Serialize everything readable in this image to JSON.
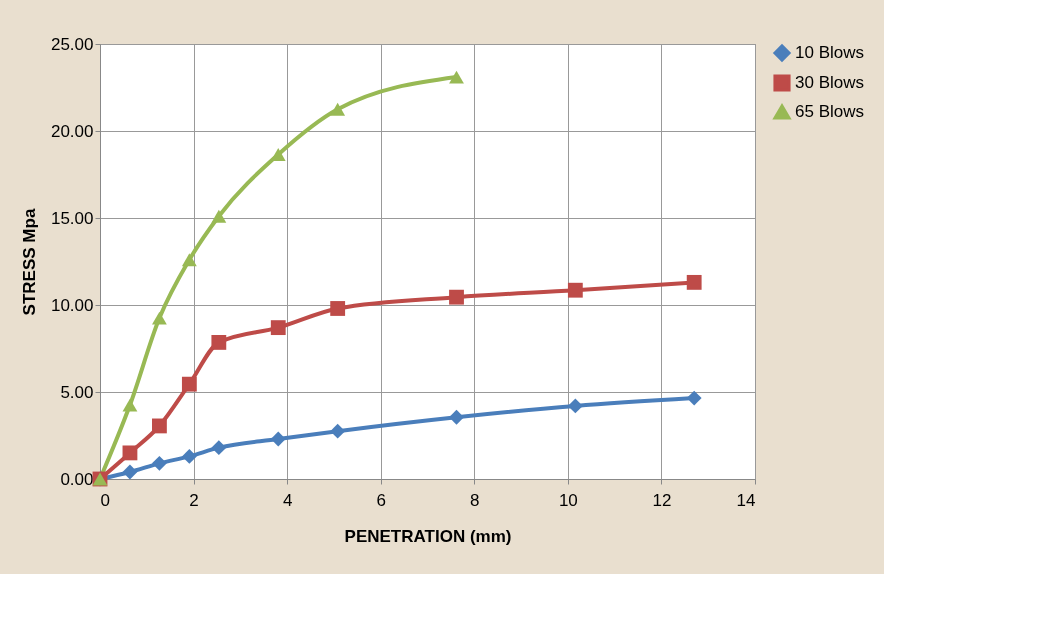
{
  "chart_data": {
    "type": "line",
    "xlabel": "PENETRATION (mm)",
    "ylabel": "STRESS Mpa",
    "xlim": [
      0,
      14
    ],
    "xticks": [
      0,
      2,
      4,
      6,
      8,
      10,
      12,
      14
    ],
    "ylim": [
      0,
      25
    ],
    "yticks": [
      {
        "value": 0,
        "label": "0.00"
      },
      {
        "value": 5,
        "label": "5.00"
      },
      {
        "value": 10,
        "label": "10.00"
      },
      {
        "value": 15,
        "label": "15.00"
      },
      {
        "value": 20,
        "label": "20.00"
      },
      {
        "value": 25,
        "label": "25.00"
      }
    ],
    "grid": true,
    "legend": "right",
    "series": [
      {
        "name": "10 Blows",
        "color": "#4a7ebb",
        "marker": "diamond",
        "x": [
          0,
          0.64,
          1.27,
          1.91,
          2.54,
          3.81,
          5.08,
          7.62,
          10.16,
          12.7
        ],
        "values": [
          0,
          0.4,
          0.9,
          1.3,
          1.8,
          2.3,
          2.75,
          3.55,
          4.2,
          4.65
        ]
      },
      {
        "name": "30 Blows",
        "color": "#be4b48",
        "marker": "square",
        "x": [
          0,
          0.64,
          1.27,
          1.91,
          2.54,
          3.81,
          5.08,
          7.62,
          10.16,
          12.7
        ],
        "values": [
          0,
          1.5,
          3.05,
          5.45,
          7.85,
          8.7,
          9.8,
          10.45,
          10.85,
          11.3
        ]
      },
      {
        "name": "65 Blows",
        "color": "#98b954",
        "marker": "triangle",
        "x": [
          0,
          0.64,
          1.27,
          1.91,
          2.54,
          3.81,
          5.08,
          7.62
        ],
        "values": [
          0,
          4.25,
          9.25,
          12.6,
          15.1,
          18.65,
          21.25,
          23.1
        ]
      }
    ]
  }
}
